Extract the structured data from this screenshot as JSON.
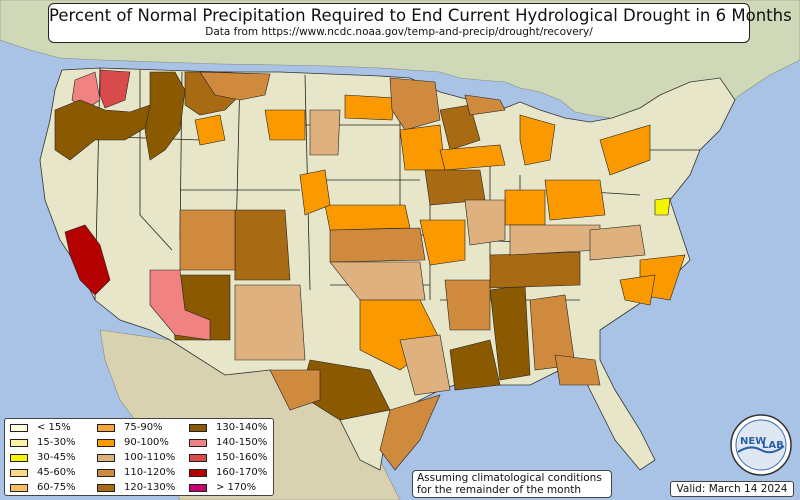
{
  "title": "Percent of Normal Precipitation Required to End Current Hydrological Drought in 6 Months",
  "subtitle": "Data from https://www.ncdc.noaa.gov/temp-and-precip/drought/recovery/",
  "legend": {
    "items": [
      {
        "label": "< 15%",
        "color": "#fdfde0"
      },
      {
        "label": "15-30%",
        "color": "#fbf2a6"
      },
      {
        "label": "30-45%",
        "color": "#f5f500"
      },
      {
        "label": "45-60%",
        "color": "#fad88a"
      },
      {
        "label": "60-75%",
        "color": "#f8bc62"
      },
      {
        "label": "75-90%",
        "color": "#f9a33a"
      },
      {
        "label": "90-100%",
        "color": "#fb9a00"
      },
      {
        "label": "100-110%",
        "color": "#deb17f"
      },
      {
        "label": "110-120%",
        "color": "#cf8a3d"
      },
      {
        "label": "120-130%",
        "color": "#a86a12"
      },
      {
        "label": "130-140%",
        "color": "#8b5a00"
      },
      {
        "label": "140-150%",
        "color": "#f08282"
      },
      {
        "label": "150-160%",
        "color": "#d94a4a"
      },
      {
        "label": "160-170%",
        "color": "#b50000"
      },
      {
        "label": "> 170%",
        "color": "#c8006e"
      }
    ]
  },
  "note": {
    "line1": "Assuming climatological conditions",
    "line2": "for the remainder of the month"
  },
  "valid": "Valid: March 14 2024",
  "logo": {
    "text_left": "NEW",
    "text_right": "LAB"
  },
  "colors": {
    "ocean": "#a8c3e6",
    "land": "#e8e6c8",
    "canada": "#cfd9b8",
    "mexico": "#d9d2b0"
  }
}
